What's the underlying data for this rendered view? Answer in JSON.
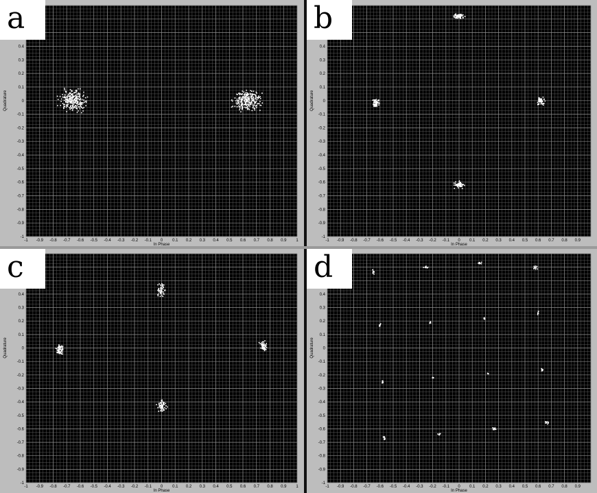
{
  "figure": {
    "panels": [
      {
        "letter": "a"
      },
      {
        "letter": "b"
      },
      {
        "letter": "c"
      },
      {
        "letter": "d"
      }
    ]
  },
  "colors": {
    "plot_background": "#000000",
    "grid": "#5a5a5a",
    "points": "#ffffff",
    "frame": "#bdbdbd"
  },
  "chart_data": [
    {
      "type": "scatter",
      "panel": "a",
      "xlabel": "In Phase",
      "ylabel": "Quadrature",
      "xlim": [
        -1,
        1
      ],
      "ylim": [
        -1,
        0.7
      ],
      "grid": true,
      "xticks": [
        "-1",
        "-0.9",
        "-0.8",
        "-0.7",
        "-0.6",
        "-0.5",
        "-0.4",
        "-0.3",
        "-0.2",
        "-0.1",
        "0",
        "0.1",
        "0.2",
        "0.3",
        "0.4",
        "0.5",
        "0.6",
        "0.7",
        "0.8",
        "0.9",
        "1"
      ],
      "yticks": [
        "0.6",
        "0.5",
        "0.4",
        "0.3",
        "0.2",
        "0.1",
        "0",
        "-0.1",
        "-0.2",
        "-0.3",
        "-0.4",
        "-0.5",
        "-0.6",
        "-0.7",
        "-0.8",
        "-0.9",
        "-1"
      ],
      "clusters": [
        {
          "x": -0.65,
          "y": 0.0,
          "spread_x": 0.09,
          "spread_y": 0.07,
          "n": 260
        },
        {
          "x": 0.63,
          "y": 0.0,
          "spread_x": 0.09,
          "spread_y": 0.07,
          "n": 260
        }
      ]
    },
    {
      "type": "scatter",
      "panel": "b",
      "xlabel": "In Phase",
      "ylabel": "Quadrature",
      "xlim": [
        -1,
        1
      ],
      "ylim": [
        -1,
        0.7
      ],
      "grid": true,
      "xticks": [
        "-1",
        "-0.9",
        "-0.8",
        "-0.7",
        "-0.6",
        "-0.5",
        "-0.4",
        "-0.3",
        "-0.2",
        "-0.1",
        "0",
        "0.1",
        "0.2",
        "0.3",
        "0.4",
        "0.5",
        "0.6",
        "0.7",
        "0.8",
        "0.9"
      ],
      "yticks": [
        "0.6",
        "0.5",
        "0.4",
        "0.3",
        "0.2",
        "0.1",
        "0",
        "-0.1",
        "-0.2",
        "-0.3",
        "-0.4",
        "-0.5",
        "-0.6",
        "-0.7",
        "-0.8",
        "-0.9",
        "-1"
      ],
      "clusters": [
        {
          "x": 0.0,
          "y": 0.62,
          "spread_x": 0.04,
          "spread_y": 0.02,
          "n": 70
        },
        {
          "x": -0.63,
          "y": -0.02,
          "spread_x": 0.025,
          "spread_y": 0.03,
          "n": 60
        },
        {
          "x": 0.62,
          "y": 0.0,
          "spread_x": 0.025,
          "spread_y": 0.03,
          "n": 60
        },
        {
          "x": 0.0,
          "y": -0.62,
          "spread_x": 0.04,
          "spread_y": 0.02,
          "n": 70
        }
      ]
    },
    {
      "type": "scatter",
      "panel": "c",
      "xlabel": "In Phase",
      "ylabel": "Quadrature",
      "xlim": [
        -1,
        1
      ],
      "ylim": [
        -1,
        0.7
      ],
      "grid": true,
      "xticks": [
        "-1",
        "-0.9",
        "-0.8",
        "-0.7",
        "-0.6",
        "-0.5",
        "-0.4",
        "-0.3",
        "-0.2",
        "-0.1",
        "0",
        "0.1",
        "0.2",
        "0.3",
        "0.4",
        "0.5",
        "0.6",
        "0.7",
        "0.8",
        "0.9",
        "1"
      ],
      "yticks": [
        "0.6",
        "0.5",
        "0.4",
        "0.3",
        "0.2",
        "0.1",
        "0",
        "-0.1",
        "-0.2",
        "-0.3",
        "-0.4",
        "-0.5",
        "-0.6",
        "-0.7",
        "-0.8",
        "-0.9",
        "-1"
      ],
      "clusters": [
        {
          "x": 0.0,
          "y": 0.43,
          "spread_x": 0.025,
          "spread_y": 0.045,
          "n": 60
        },
        {
          "x": -0.75,
          "y": -0.01,
          "spread_x": 0.025,
          "spread_y": 0.035,
          "n": 60
        },
        {
          "x": 0.75,
          "y": 0.01,
          "spread_x": 0.025,
          "spread_y": 0.035,
          "n": 60
        },
        {
          "x": 0.0,
          "y": -0.43,
          "spread_x": 0.03,
          "spread_y": 0.045,
          "n": 60
        }
      ]
    },
    {
      "type": "scatter",
      "panel": "d",
      "xlabel": "In Phase",
      "ylabel": "Quadrature",
      "xlim": [
        -1,
        1
      ],
      "ylim": [
        -1,
        0.7
      ],
      "grid": true,
      "xticks": [
        "-1",
        "-0.9",
        "-0.8",
        "-0.7",
        "-0.6",
        "-0.5",
        "-0.4",
        "-0.3",
        "-0.2",
        "-0.1",
        "0",
        "0.1",
        "0.2",
        "0.3",
        "0.4",
        "0.5",
        "0.6",
        "0.7",
        "0.8",
        "0.9"
      ],
      "yticks": [
        "0.6",
        "0.5",
        "0.4",
        "0.3",
        "0.2",
        "0.1",
        "0",
        "-0.1",
        "-0.2",
        "-0.3",
        "-0.4",
        "-0.5",
        "-0.6",
        "-0.7",
        "-0.8",
        "-0.9",
        "-1"
      ],
      "clusters": [
        {
          "x": -0.65,
          "y": 0.56,
          "spread_x": 0.015,
          "spread_y": 0.015,
          "n": 10
        },
        {
          "x": -0.25,
          "y": 0.6,
          "spread_x": 0.015,
          "spread_y": 0.008,
          "n": 10
        },
        {
          "x": 0.16,
          "y": 0.63,
          "spread_x": 0.015,
          "spread_y": 0.008,
          "n": 10
        },
        {
          "x": 0.58,
          "y": 0.6,
          "spread_x": 0.015,
          "spread_y": 0.015,
          "n": 10
        },
        {
          "x": -0.6,
          "y": 0.17,
          "spread_x": 0.006,
          "spread_y": 0.015,
          "n": 8
        },
        {
          "x": -0.22,
          "y": 0.19,
          "spread_x": 0.006,
          "spread_y": 0.006,
          "n": 5
        },
        {
          "x": 0.19,
          "y": 0.22,
          "spread_x": 0.006,
          "spread_y": 0.006,
          "n": 5
        },
        {
          "x": 0.6,
          "y": 0.26,
          "spread_x": 0.006,
          "spread_y": 0.015,
          "n": 8
        },
        {
          "x": -0.58,
          "y": -0.25,
          "spread_x": 0.006,
          "spread_y": 0.015,
          "n": 8
        },
        {
          "x": -0.2,
          "y": -0.22,
          "spread_x": 0.006,
          "spread_y": 0.006,
          "n": 5
        },
        {
          "x": 0.22,
          "y": -0.19,
          "spread_x": 0.006,
          "spread_y": 0.006,
          "n": 5
        },
        {
          "x": 0.63,
          "y": -0.16,
          "spread_x": 0.006,
          "spread_y": 0.015,
          "n": 8
        },
        {
          "x": -0.57,
          "y": -0.67,
          "spread_x": 0.015,
          "spread_y": 0.015,
          "n": 10
        },
        {
          "x": -0.15,
          "y": -0.64,
          "spread_x": 0.015,
          "spread_y": 0.008,
          "n": 10
        },
        {
          "x": 0.27,
          "y": -0.6,
          "spread_x": 0.015,
          "spread_y": 0.008,
          "n": 10
        },
        {
          "x": 0.67,
          "y": -0.55,
          "spread_x": 0.015,
          "spread_y": 0.015,
          "n": 10
        }
      ]
    }
  ]
}
